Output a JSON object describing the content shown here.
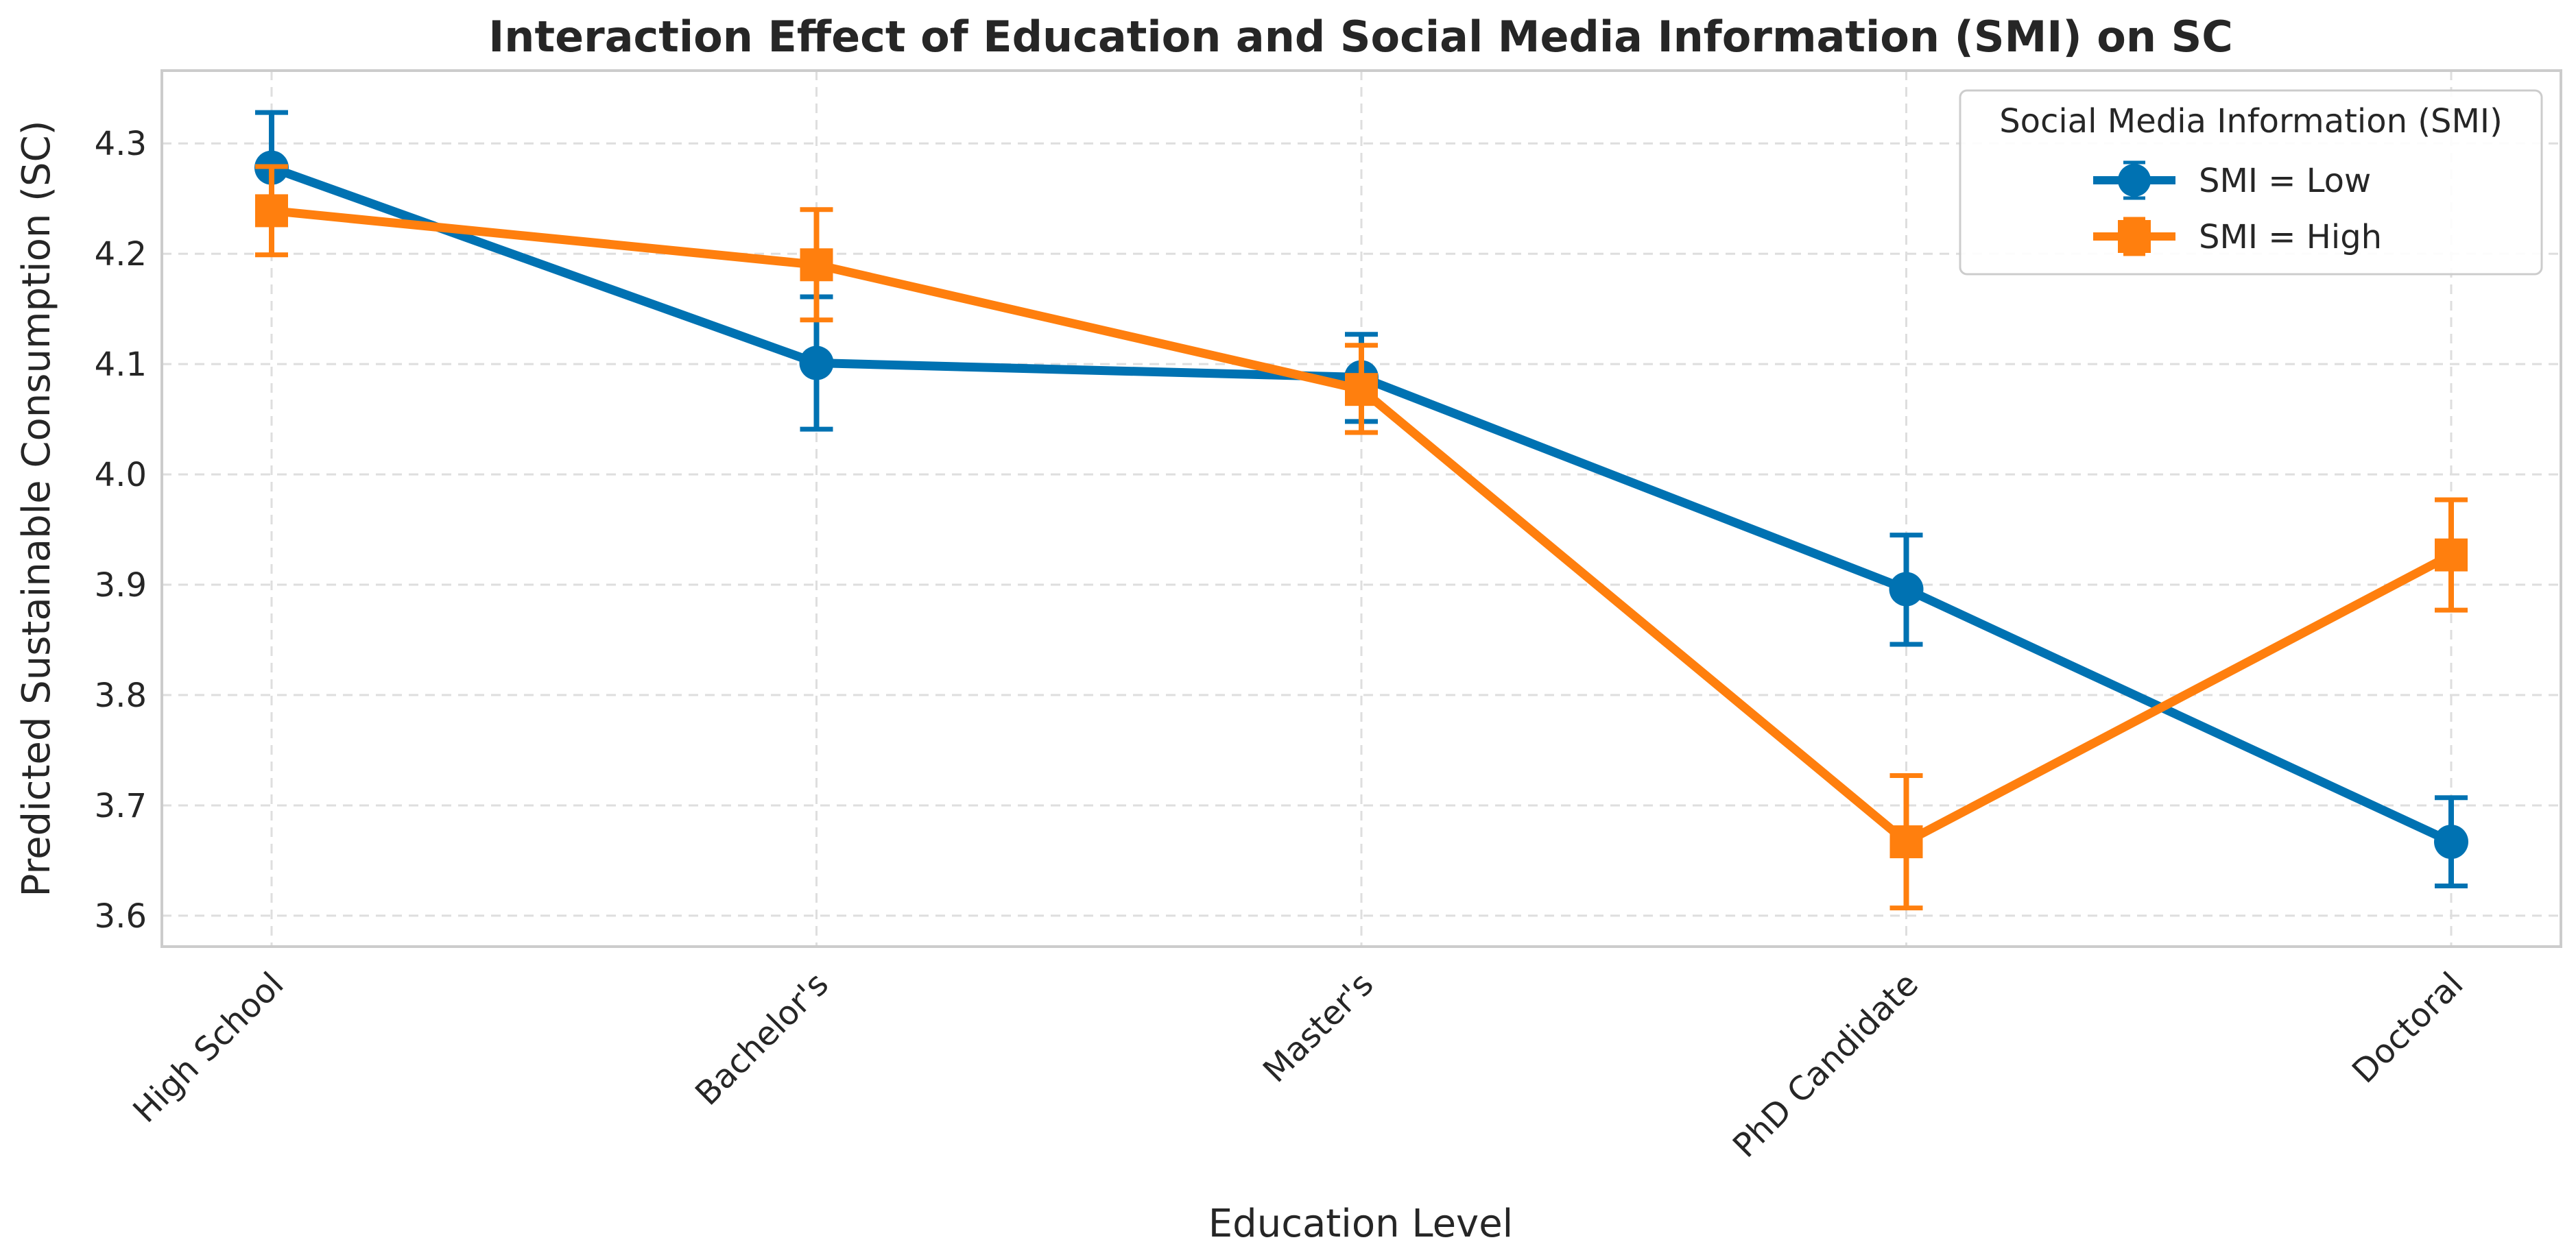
{
  "chart_data": {
    "type": "line",
    "title": "Interaction Effect of Education and Social Media Information (SMI) on SC",
    "xlabel": "Education Level",
    "ylabel": "Predicted Sustainable Consumption (SC)",
    "categories": [
      "High School",
      "Bachelor's",
      "Master's",
      "PhD Candidate",
      "Doctoral"
    ],
    "ylim": [
      3.572,
      4.366
    ],
    "yticks": [
      3.6,
      3.7,
      3.8,
      3.9,
      4.0,
      4.1,
      4.2,
      4.3
    ],
    "ytick_labels": [
      "3.6",
      "3.7",
      "3.8",
      "3.9",
      "4.0",
      "4.1",
      "4.2",
      "4.3"
    ],
    "grid": true,
    "legend": {
      "title": "Social Media Information (SMI)",
      "position": "top-right"
    },
    "series": [
      {
        "name": "SMI = Low",
        "color": "#0072b2",
        "marker": "circle",
        "values": [
          4.278,
          4.101,
          4.088,
          3.896,
          3.667
        ],
        "err_low": [
          4.228,
          4.041,
          4.048,
          3.846,
          3.627
        ],
        "err_high": [
          4.328,
          4.161,
          4.127,
          3.945,
          3.707
        ]
      },
      {
        "name": "SMI = High",
        "color": "#ff7f0e",
        "marker": "square",
        "values": [
          4.239,
          4.19,
          4.077,
          3.667,
          3.927
        ],
        "err_low": [
          4.199,
          4.14,
          4.038,
          3.607,
          3.877
        ],
        "err_high": [
          4.279,
          4.24,
          4.117,
          3.727,
          3.977
        ]
      }
    ]
  }
}
